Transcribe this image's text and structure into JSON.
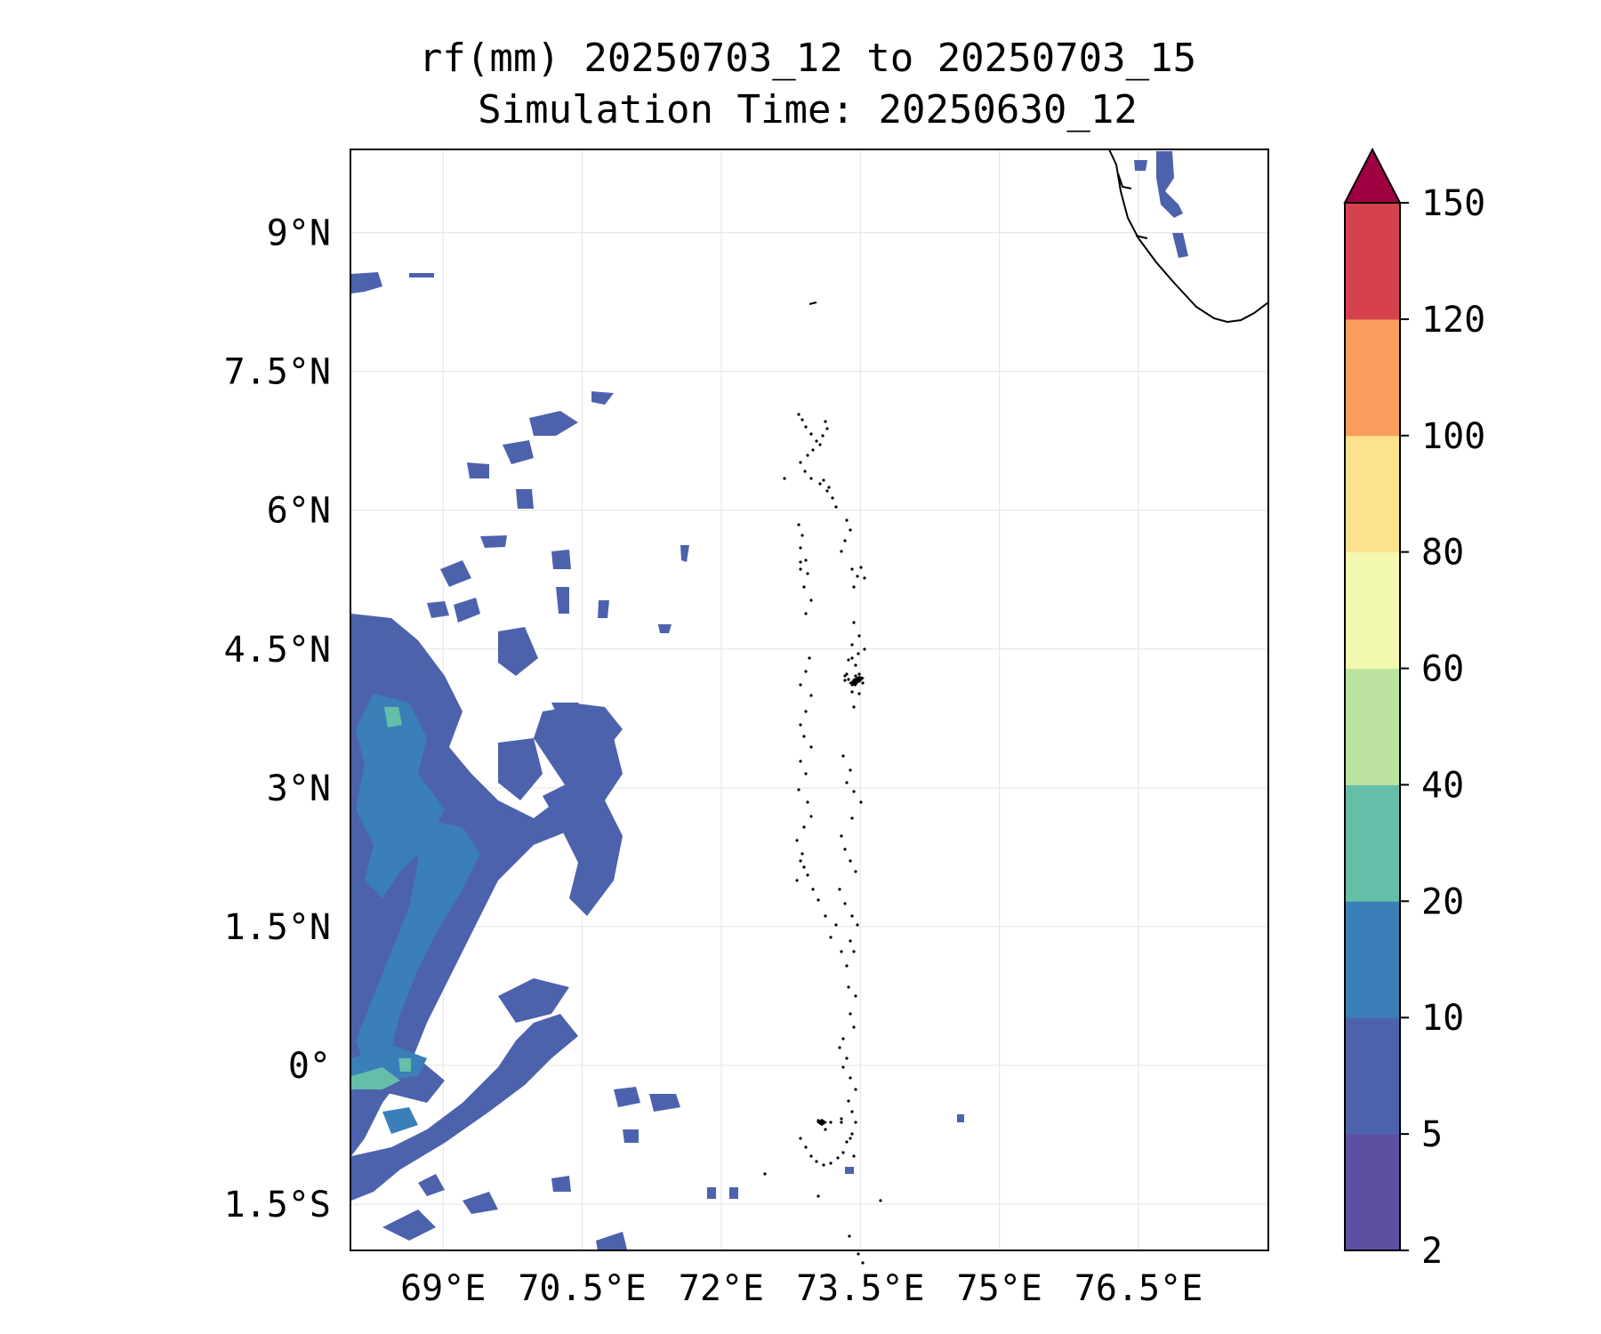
{
  "title": {
    "line1": "rf(mm) 20250703_12 to 20250703_15",
    "line2": "Simulation Time: 20250630_12"
  },
  "map": {
    "lon_range": [
      68.0,
      77.9
    ],
    "lat_range": [
      -2.0,
      9.9
    ],
    "gridlines": true,
    "lon_ticks": [
      {
        "value": 69.0,
        "label": "69°E"
      },
      {
        "value": 70.5,
        "label": "70.5°E"
      },
      {
        "value": 72.0,
        "label": "72°E"
      },
      {
        "value": 73.5,
        "label": "73.5°E"
      },
      {
        "value": 75.0,
        "label": "75°E"
      },
      {
        "value": 76.5,
        "label": "76.5°E"
      }
    ],
    "lat_ticks": [
      {
        "value": 9.0,
        "label": "9°N"
      },
      {
        "value": 7.5,
        "label": "7.5°N"
      },
      {
        "value": 6.0,
        "label": "6°N"
      },
      {
        "value": 4.5,
        "label": "4.5°N"
      },
      {
        "value": 3.0,
        "label": "3°N"
      },
      {
        "value": 1.5,
        "label": "1.5°N"
      },
      {
        "value": 0.0,
        "label": "0°"
      },
      {
        "value": -1.5,
        "label": "1.5°S"
      }
    ]
  },
  "colorbar": {
    "levels": [
      "2",
      "5",
      "10",
      "20",
      "40",
      "60",
      "80",
      "100",
      "120",
      "150"
    ],
    "colors": [
      "#5e4fa2",
      "#4d62ad",
      "#3a7fb8",
      "#65bfa8",
      "#bbe3a0",
      "#f3f9b0",
      "#fde28e",
      "#f99e5d",
      "#d6414e"
    ],
    "extend_color": "#9e0142",
    "extend": "max"
  }
}
